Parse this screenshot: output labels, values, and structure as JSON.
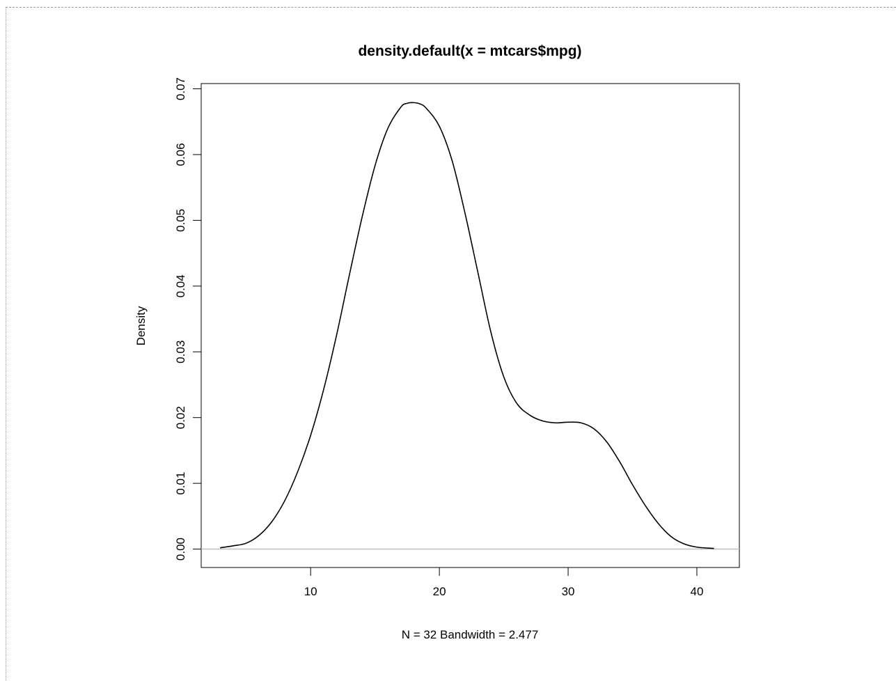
{
  "chart_data": {
    "type": "line",
    "title": "density.default(x = mtcars$mpg)",
    "xlabel": "N = 32   Bandwidth = 2.477",
    "ylabel": "Density",
    "xlim": [
      1.5,
      43.3
    ],
    "ylim": [
      -0.0028,
      0.0708
    ],
    "x_ticks": [
      10,
      20,
      30,
      40
    ],
    "y_ticks": [
      0.0,
      0.01,
      0.02,
      0.03,
      0.04,
      0.05,
      0.06,
      0.07
    ],
    "x_tick_labels": [
      "10",
      "20",
      "30",
      "40"
    ],
    "y_tick_labels": [
      "0.00",
      "0.01",
      "0.02",
      "0.03",
      "0.04",
      "0.05",
      "0.06",
      "0.07"
    ],
    "grid": false,
    "baseline": {
      "y": 0,
      "color": "#bebebe"
    },
    "line_color": "#000000",
    "series": [
      {
        "x": [
          2.97,
          4,
          5,
          6,
          7,
          8,
          9,
          10,
          11,
          12,
          13,
          14,
          15,
          16,
          17,
          17.5,
          18,
          18.5,
          19,
          20,
          21,
          22,
          23,
          24,
          25,
          26,
          27,
          28,
          29,
          30,
          31,
          32,
          33,
          34,
          35,
          36,
          37,
          38,
          39,
          40,
          41.33
        ],
        "y": [
          0.0002,
          0.0005,
          0.0009,
          0.0021,
          0.0042,
          0.0074,
          0.0118,
          0.0173,
          0.0242,
          0.0324,
          0.0416,
          0.0505,
          0.0583,
          0.064,
          0.0672,
          0.0678,
          0.0679,
          0.0677,
          0.067,
          0.0643,
          0.059,
          0.051,
          0.042,
          0.033,
          0.0262,
          0.0222,
          0.0204,
          0.0195,
          0.0192,
          0.0193,
          0.0192,
          0.0183,
          0.0163,
          0.0133,
          0.0098,
          0.0066,
          0.0039,
          0.0019,
          0.0008,
          0.0003,
          0.0001
        ]
      }
    ]
  }
}
